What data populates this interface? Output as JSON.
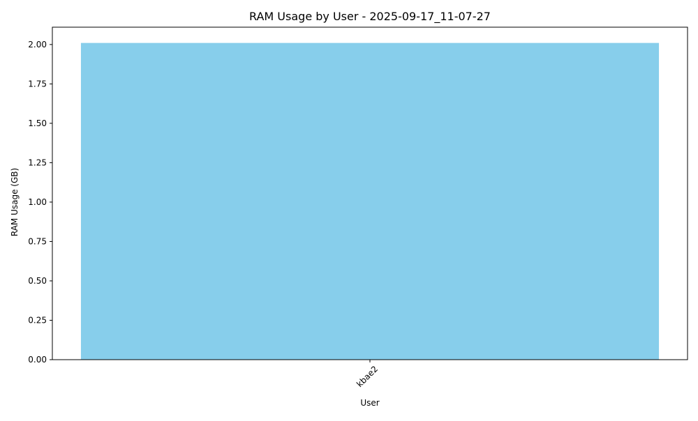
{
  "chart_data": {
    "type": "bar",
    "title": "RAM Usage by User - 2025-09-17_11-07-27",
    "xlabel": "User",
    "ylabel": "RAM Usage (GB)",
    "categories": [
      "kbae2"
    ],
    "values": [
      2.01
    ],
    "ylim": [
      0,
      2.11
    ],
    "yticks": [
      "0.00",
      "0.25",
      "0.50",
      "0.75",
      "1.00",
      "1.25",
      "1.50",
      "1.75",
      "2.00"
    ],
    "xtick_rotation": "45 degrees",
    "grid": false,
    "bar_color": "#87CEEB",
    "legend": "none"
  }
}
